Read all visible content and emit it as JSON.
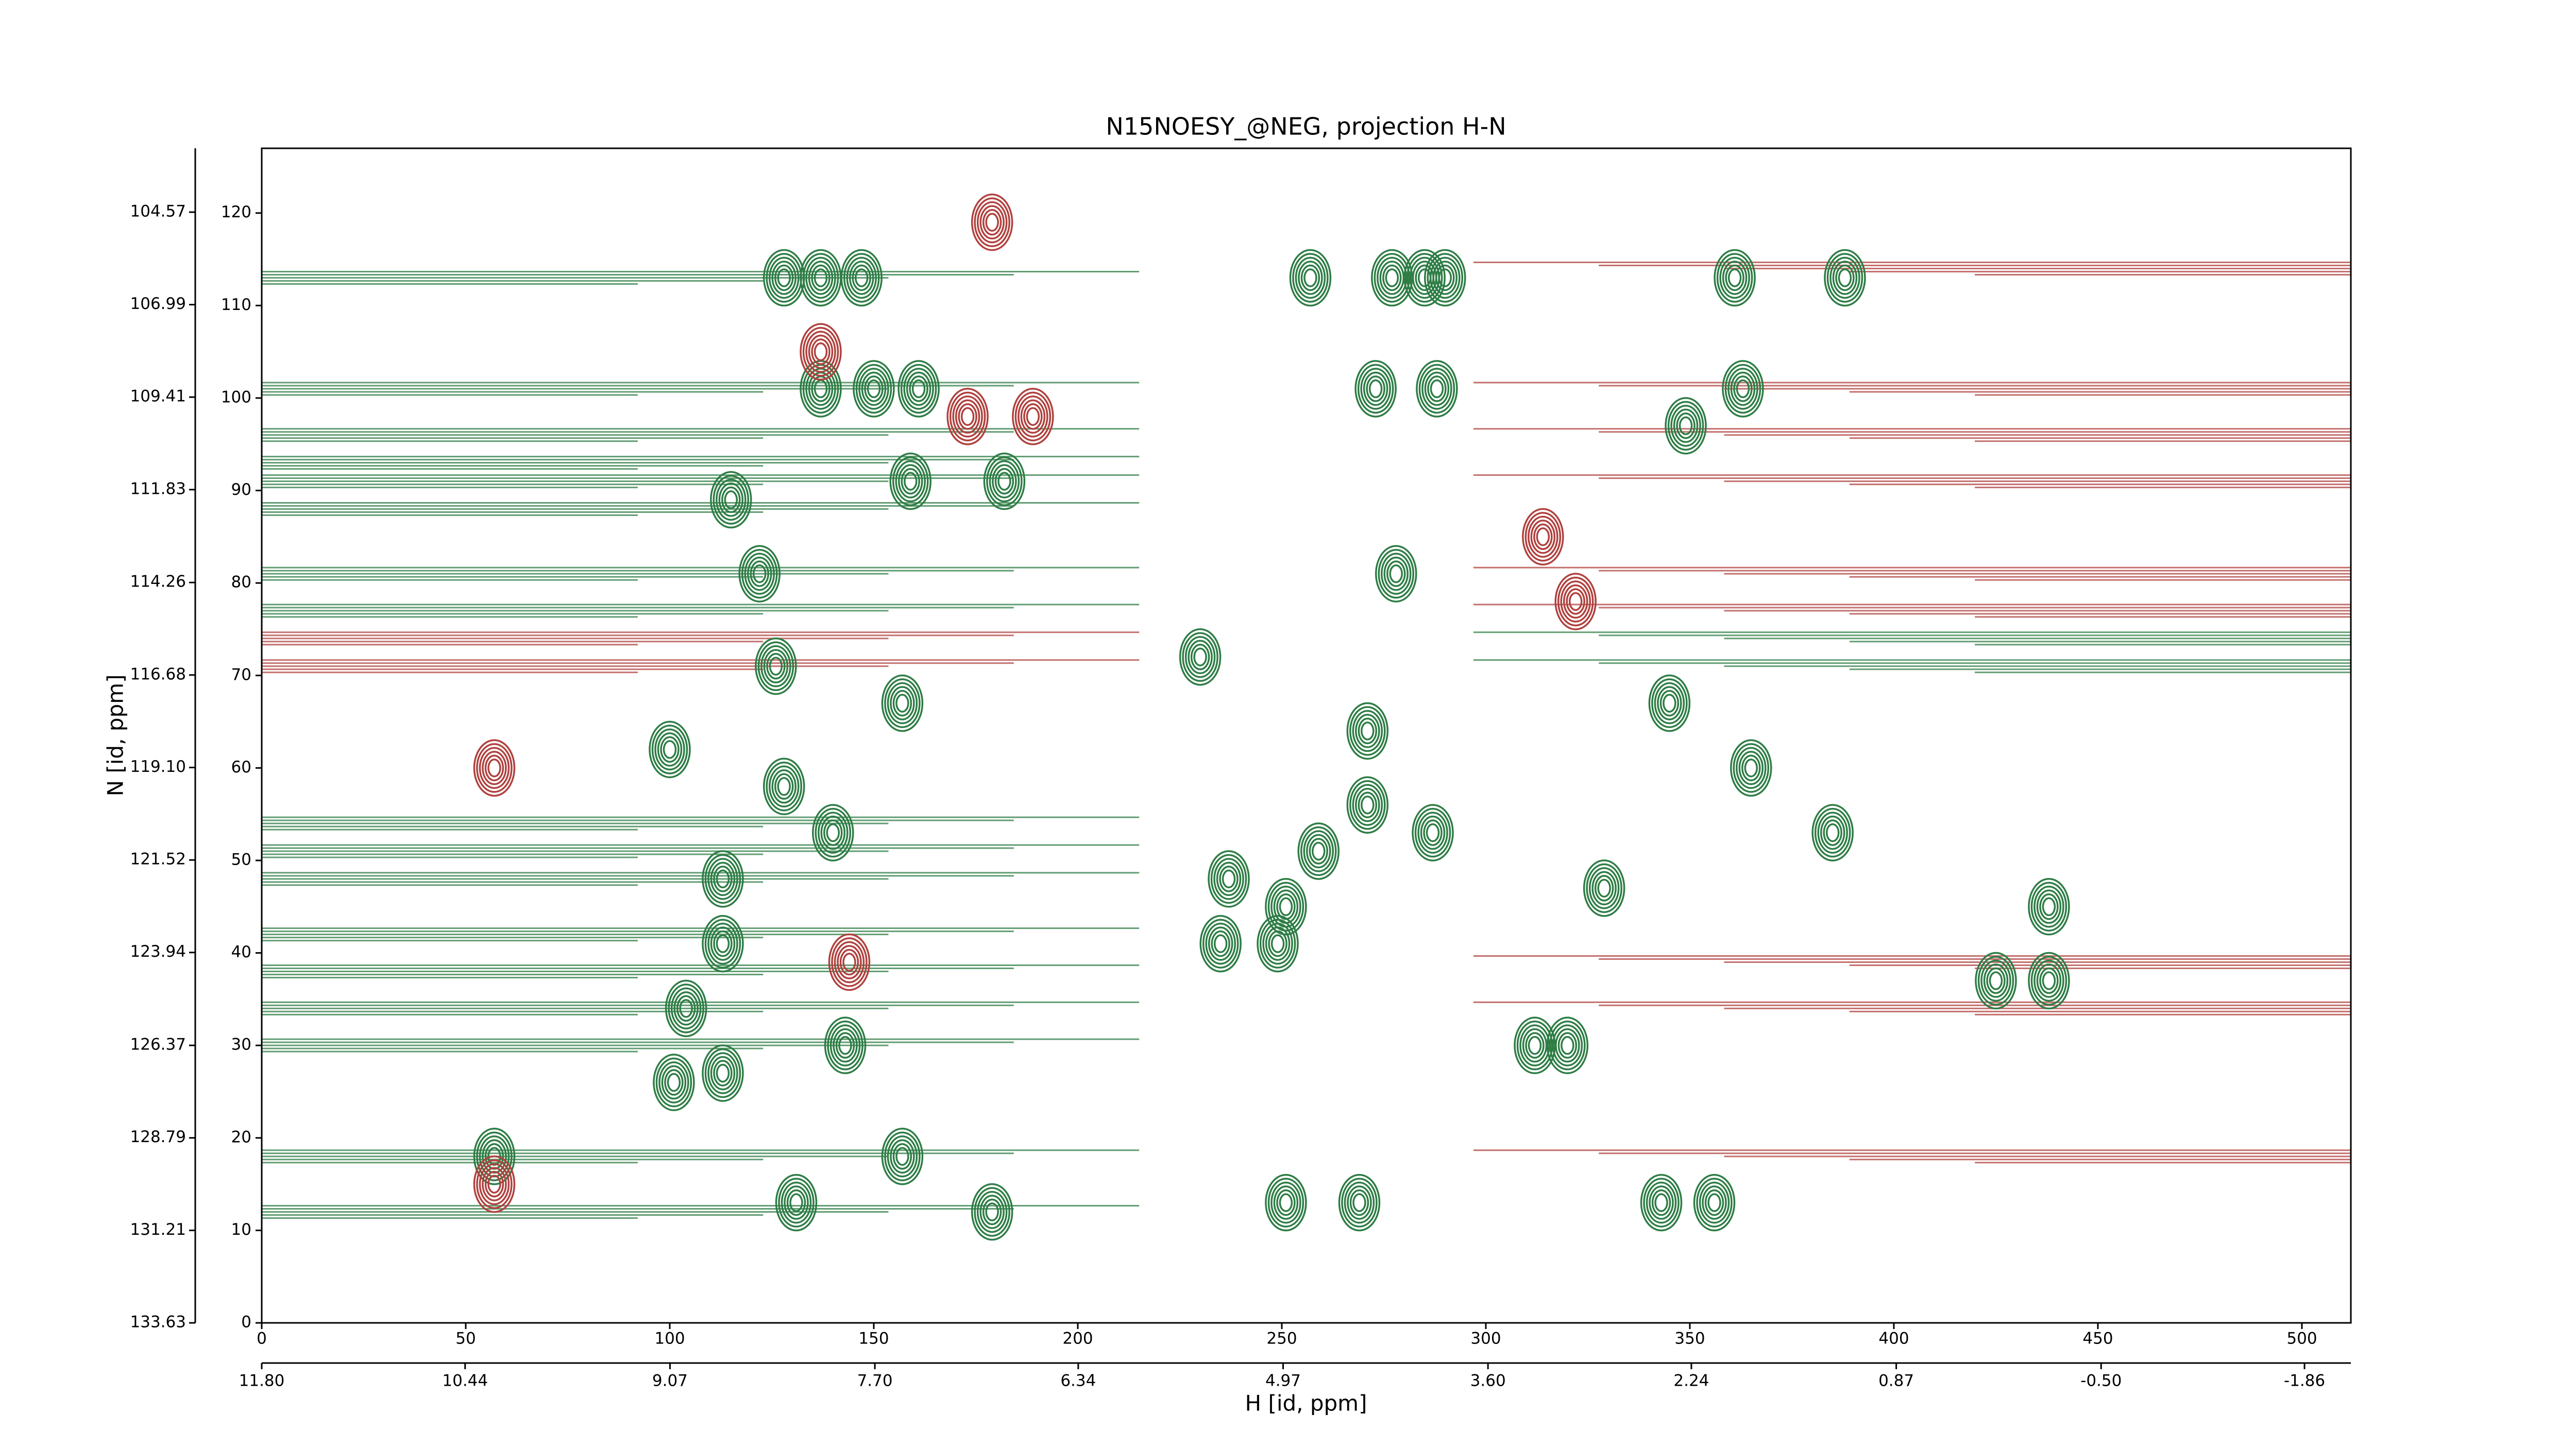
{
  "chart_data": {
    "type": "contour",
    "title": "N15NOESY_@NEG, projection H-N",
    "xlabel": "H [id, ppm]",
    "ylabel": "N [id, ppm]",
    "xlim": [
      0,
      512
    ],
    "ylim": [
      0,
      127
    ],
    "xticks": [
      0,
      50,
      100,
      150,
      200,
      250,
      300,
      350,
      400,
      450,
      500
    ],
    "yticks": [
      0,
      10,
      20,
      30,
      40,
      50,
      60,
      70,
      80,
      90,
      100,
      110,
      120
    ],
    "x2lim": [
      11.8,
      -2.17
    ],
    "x2ticks": [
      {
        "value": 11.8,
        "label": "11.80"
      },
      10.44,
      9.07,
      {
        "value": 7.7,
        "label": "7.70"
      },
      6.34,
      4.97,
      {
        "value": 3.6,
        "label": "3.60"
      },
      2.24,
      0.87,
      {
        "value": -0.5,
        "label": "-0.50"
      },
      -1.86
    ],
    "y2lim": [
      133.63,
      102.9
    ],
    "y2ticks": [
      133.63,
      131.21,
      128.79,
      126.37,
      123.94,
      121.52,
      {
        "value": 119.1,
        "label": "119.10"
      },
      116.68,
      114.26,
      111.83,
      109.41,
      106.99,
      104.57
    ],
    "series": [
      {
        "color": "#2e7d45",
        "x": [
          257,
          277,
          285,
          290,
          361,
          388,
          128,
          137,
          147,
          137,
          150,
          161,
          273,
          288,
          115,
          182,
          159,
          122,
          278,
          230,
          126,
          271,
          100,
          113,
          251,
          237,
          329,
          113,
          235,
          249,
          104,
          143,
          113,
          101,
          131,
          251,
          269,
          343,
          356,
          425,
          438,
          438,
          157,
          179,
          320,
          312,
          349,
          363,
          345,
          365,
          385,
          271,
          287,
          259,
          140,
          128,
          157,
          57
        ],
        "y": [
          113,
          113,
          113,
          113,
          113,
          113,
          113,
          113,
          113,
          101,
          101,
          101,
          101,
          101,
          89,
          91,
          91,
          81,
          81,
          72,
          71,
          64,
          62,
          48,
          45,
          48,
          47,
          41,
          41,
          41,
          34,
          30,
          27,
          26,
          13,
          13,
          13,
          13,
          13,
          37,
          37,
          45,
          18,
          12,
          30,
          30,
          97,
          101,
          67,
          60,
          53,
          56,
          53,
          51,
          53,
          58,
          67,
          18
        ]
      },
      {
        "color": "#b0413e",
        "x": [
          57,
          57,
          137,
          173,
          189,
          314,
          144,
          179,
          322
        ],
        "y": [
          60,
          15,
          105,
          98,
          98,
          85,
          39,
          119,
          78
        ]
      }
    ],
    "left_ridges": {
      "color": "#2e7d45",
      "y": [
        113,
        101,
        96,
        93,
        91,
        88,
        81,
        77,
        54,
        51,
        48,
        42,
        38,
        34,
        30,
        18,
        12
      ]
    },
    "left_ridges_neg": {
      "color": "#b0413e",
      "y": [
        74,
        71
      ]
    },
    "right_ridges": {
      "color": "#b0413e",
      "y": [
        114,
        101,
        96,
        91,
        81,
        77,
        39,
        34,
        18
      ]
    },
    "right_ridges_pos": {
      "color": "#2e7d45",
      "y": [
        74,
        71
      ]
    }
  }
}
